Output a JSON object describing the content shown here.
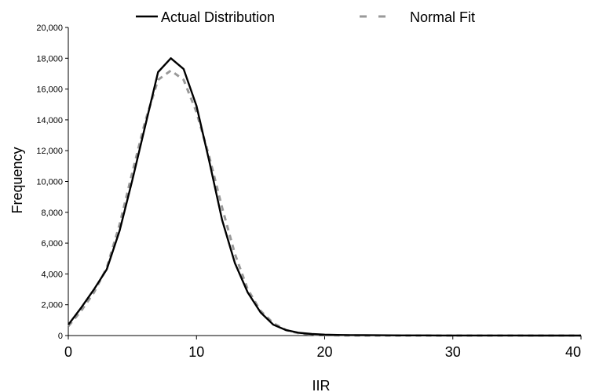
{
  "chart_data": {
    "type": "line",
    "title": "",
    "xlabel": "IIR",
    "ylabel": "Frequency",
    "xlim": [
      0,
      40
    ],
    "ylim": [
      0,
      20000
    ],
    "x_ticks": [
      0,
      10,
      20,
      30,
      40
    ],
    "x_tick_labels": [
      "0",
      "10",
      "20",
      "30",
      "40"
    ],
    "y_ticks": [
      0,
      2000,
      4000,
      6000,
      8000,
      10000,
      12000,
      14000,
      16000,
      18000,
      20000
    ],
    "y_tick_labels": [
      "0",
      "2,000",
      "4,000",
      "6,000",
      "8,000",
      "10,000",
      "12,000",
      "14,000",
      "16,000",
      "18,000",
      "20,000"
    ],
    "grid": false,
    "legend_position": "top",
    "series": [
      {
        "name": "Actual Distribution",
        "color": "#000000",
        "style": "solid",
        "x": [
          0,
          1,
          2,
          3,
          4,
          5,
          6,
          7,
          8,
          9,
          10,
          11,
          12,
          13,
          14,
          15,
          16,
          17,
          18,
          19,
          20,
          21,
          22,
          23,
          24,
          25,
          26,
          27,
          28,
          29,
          30,
          31,
          32,
          33,
          34,
          35,
          36,
          37,
          38,
          39,
          40
        ],
        "y": [
          700,
          1800,
          3000,
          4300,
          6800,
          10100,
          13600,
          17100,
          18000,
          17300,
          14900,
          11300,
          7500,
          4700,
          2800,
          1500,
          700,
          350,
          180,
          100,
          60,
          40,
          30,
          25,
          20,
          15,
          12,
          10,
          8,
          6,
          5,
          5,
          4,
          4,
          3,
          3,
          2,
          2,
          2,
          1,
          1
        ]
      },
      {
        "name": "Normal Fit",
        "color": "#999999",
        "style": "dashed",
        "x": [
          0,
          1,
          2,
          3,
          4,
          5,
          6,
          7,
          8,
          9,
          10,
          11,
          12,
          13,
          14,
          15,
          16,
          17,
          18,
          19,
          20,
          21,
          22,
          23,
          24,
          25,
          26,
          27,
          28,
          29,
          30,
          31,
          32,
          33,
          34,
          35,
          36,
          37,
          38,
          39,
          40
        ],
        "y": [
          600,
          1600,
          2800,
          4400,
          7200,
          10600,
          13900,
          16600,
          17200,
          16600,
          14500,
          11600,
          8300,
          5300,
          3000,
          1600,
          800,
          350,
          150,
          60,
          25,
          10,
          5,
          2,
          1,
          0,
          0,
          0,
          0,
          0,
          0,
          0,
          0,
          0,
          0,
          0,
          0,
          0,
          0,
          0,
          0
        ]
      }
    ]
  }
}
